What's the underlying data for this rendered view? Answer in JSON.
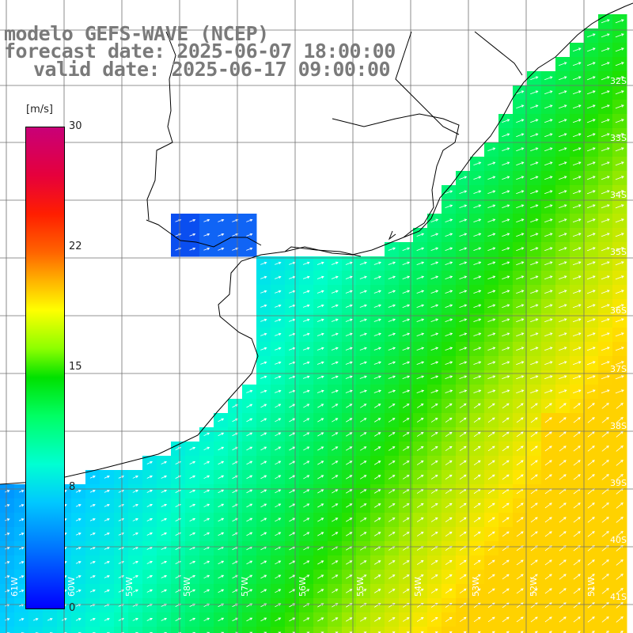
{
  "title": {
    "line1": "modelo GEFS-WAVE (NCEP)",
    "line2": "forecast date: 2025-06-07 18:00:00",
    "line3": "valid date: 2025-06-17 09:00:00"
  },
  "colorbar": {
    "unit": "[m/s]",
    "ticks": [
      "30",
      "22",
      "15",
      "8",
      "0"
    ],
    "range": [
      0,
      30
    ]
  },
  "axes": {
    "lat_labels": [
      "32S",
      "33S",
      "34S",
      "35S",
      "36S",
      "37S",
      "38S",
      "39S",
      "40S",
      "41S"
    ],
    "lon_labels": [
      "61W",
      "60W",
      "59W",
      "58W",
      "57W",
      "56W",
      "55W",
      "54W",
      "53W",
      "52W",
      "51W"
    ]
  },
  "colors": {
    "land": "#ffffff",
    "grid": "#6f6f6f",
    "coast": "#000000",
    "arrows": "#ffffff",
    "title": "#7a7a7a"
  }
}
